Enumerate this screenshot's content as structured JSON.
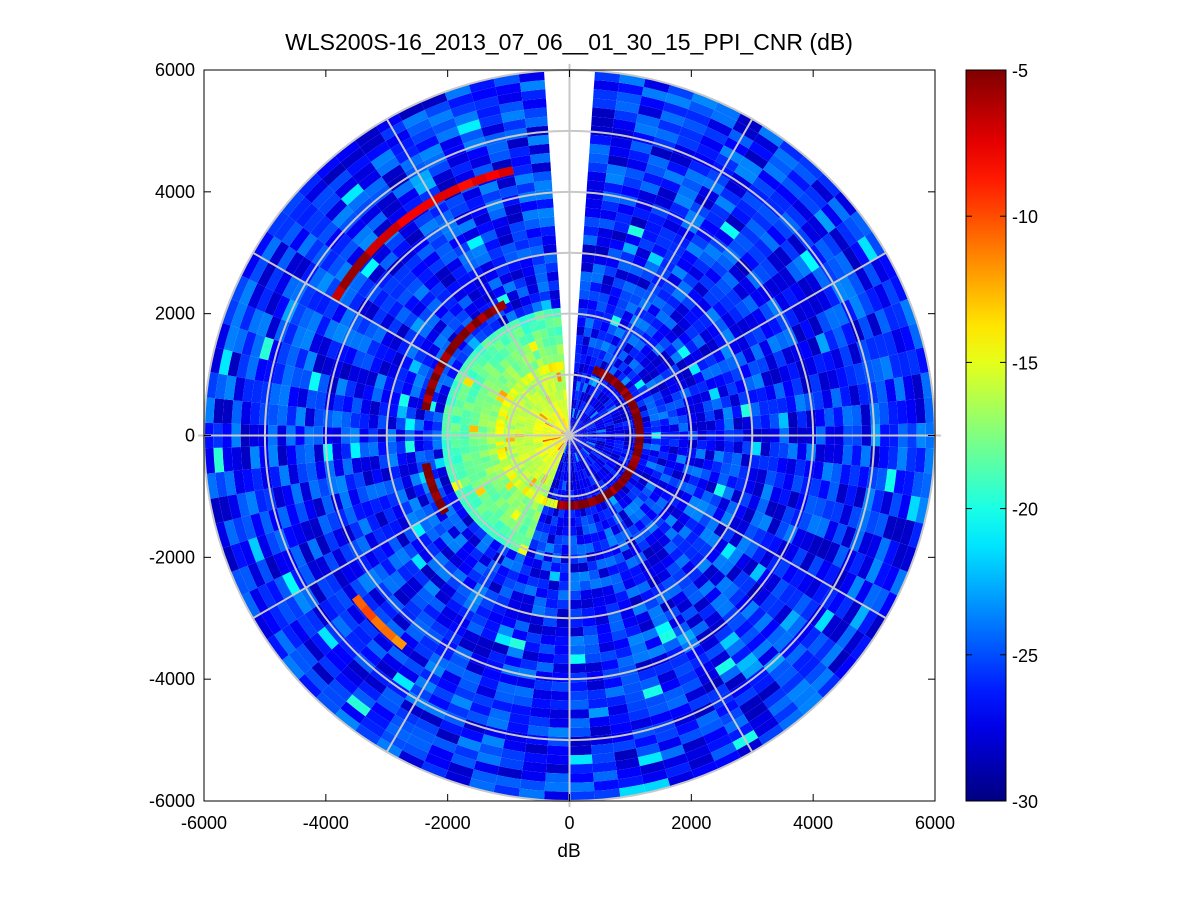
{
  "chart_data": {
    "type": "heatmap",
    "subtype": "polar-ppi",
    "title": "WLS200S-16_2013_07_06__01_30_15_PPI_CNR (dB)",
    "xlabel": "dB",
    "ylabel": "",
    "xlim": [
      -6000,
      6000
    ],
    "ylim": [
      -6000,
      6000
    ],
    "x_ticks": [
      "-6000",
      "-4000",
      "-2000",
      "0",
      "2000",
      "4000",
      "6000"
    ],
    "y_ticks": [
      "6000",
      "4000",
      "2000",
      "0",
      "-2000",
      "-4000",
      "-6000"
    ],
    "grid": true,
    "polar_grid": {
      "ring_radii": [
        1000,
        2000,
        3000,
        4000,
        5000,
        6000
      ],
      "spoke_angles_deg": [
        0,
        30,
        60,
        90,
        120,
        150,
        180,
        210,
        240,
        270,
        300,
        330
      ]
    },
    "max_range": 6000,
    "missing_sector_deg": [
      -5,
      5
    ],
    "colorbar": {
      "colormap": "jet",
      "clim": [
        -30,
        -5
      ],
      "ticks": [
        "-5",
        "-10",
        "-15",
        "-20",
        "-25",
        "-30"
      ]
    },
    "background_level_db": -26,
    "near_field": {
      "radius": 2000,
      "level_db": -19,
      "sector_deg_clockwise_from_north": [
        200,
        355
      ]
    },
    "features": [
      {
        "name": "outer-arc",
        "radius": 4450,
        "from_deg": 300,
        "to_deg": 347,
        "level_db": -7
      },
      {
        "name": "mid-arc-upper",
        "radius": 2400,
        "from_deg": 280,
        "to_deg": 332,
        "level_db": -5
      },
      {
        "name": "mid-arc-lower",
        "radius": 2400,
        "from_deg": 238,
        "to_deg": 258,
        "level_db": -5
      },
      {
        "name": "lower-left-arc",
        "radius": 4400,
        "from_deg": 218,
        "to_deg": 232,
        "level_db": -11
      },
      {
        "name": "inner-ring",
        "radius": 1150,
        "from_deg": 20,
        "to_deg": 190,
        "level_db": -5
      },
      {
        "name": "inner-yellow-ring",
        "radius": 1150,
        "from_deg": 190,
        "to_deg": 355,
        "level_db": -15
      }
    ]
  }
}
